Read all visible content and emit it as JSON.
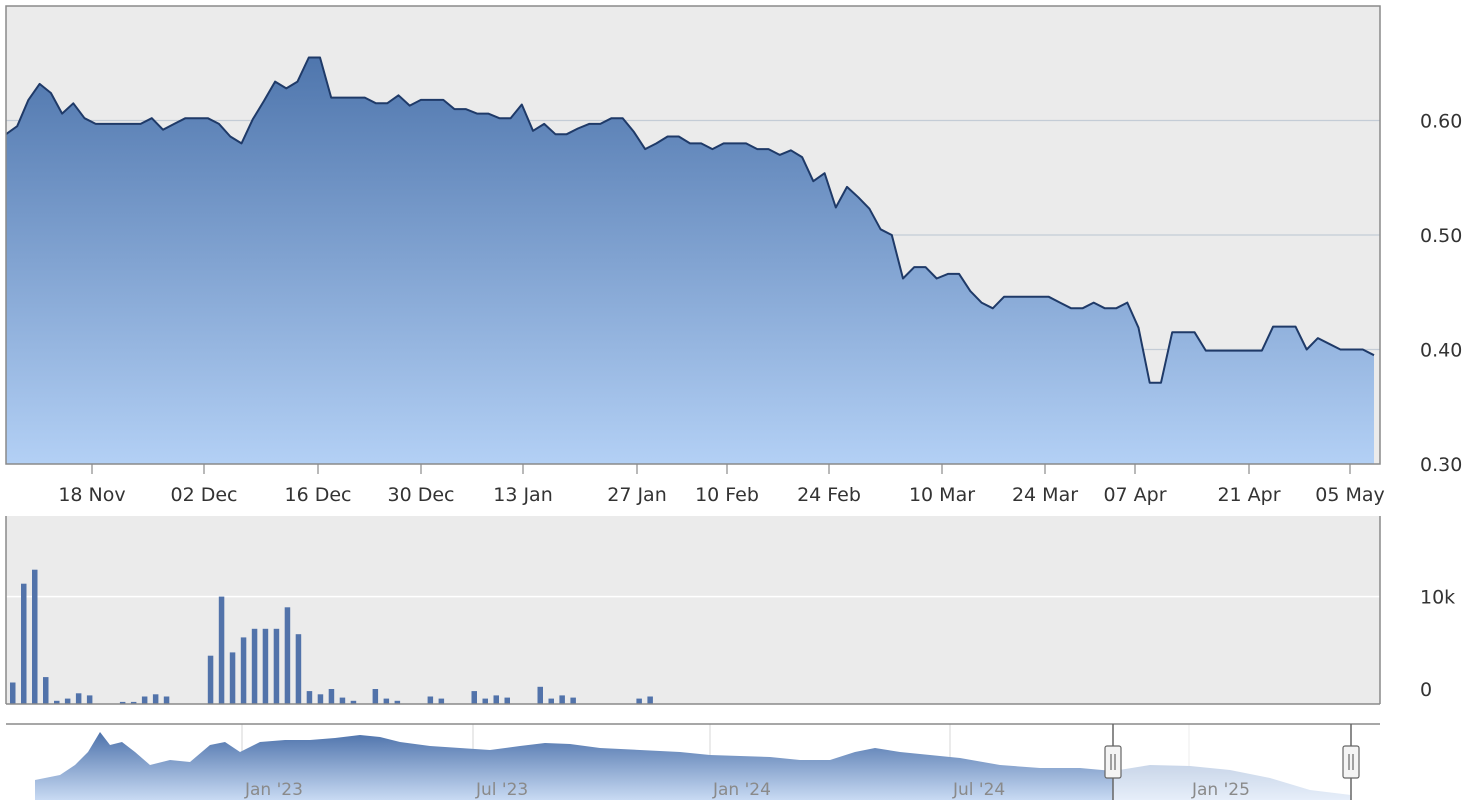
{
  "chart_data": [
    {
      "type": "area",
      "name": "price",
      "x_ticks": [
        "18 Nov",
        "02 Dec",
        "16 Dec",
        "30 Dec",
        "13 Jan",
        "27 Jan",
        "10 Feb",
        "24 Feb",
        "10 Mar",
        "24 Mar",
        "07 Apr",
        "21 Apr",
        "05 May"
      ],
      "y_ticks": [
        "0.60",
        "0.50",
        "0.40",
        "0.30"
      ],
      "ylim": [
        0.3,
        0.7
      ],
      "grid": true,
      "series": [
        {
          "values": [
            0.588,
            0.595,
            0.618,
            0.632,
            0.624,
            0.606,
            0.615,
            0.602,
            0.597,
            0.597,
            0.597,
            0.597,
            0.597,
            0.602,
            0.592,
            0.597,
            0.602,
            0.602,
            0.602,
            0.597,
            0.586,
            0.58,
            0.601,
            0.617,
            0.634,
            0.628,
            0.634,
            0.655,
            0.655,
            0.62,
            0.62,
            0.62,
            0.62,
            0.615,
            0.615,
            0.622,
            0.613,
            0.618,
            0.618,
            0.618,
            0.61,
            0.61,
            0.606,
            0.606,
            0.602,
            0.602,
            0.614,
            0.591,
            0.597,
            0.588,
            0.588,
            0.593,
            0.597,
            0.597,
            0.602,
            0.602,
            0.59,
            0.575,
            0.58,
            0.586,
            0.586,
            0.58,
            0.58,
            0.575,
            0.58,
            0.58,
            0.58,
            0.575,
            0.575,
            0.57,
            0.574,
            0.568,
            0.547,
            0.554,
            0.524,
            0.542,
            0.533,
            0.523,
            0.505,
            0.5,
            0.462,
            0.472,
            0.472,
            0.462,
            0.466,
            0.466,
            0.451,
            0.441,
            0.436,
            0.446,
            0.446,
            0.446,
            0.446,
            0.446,
            0.441,
            0.436,
            0.436,
            0.441,
            0.436,
            0.436,
            0.441,
            0.419,
            0.371,
            0.371,
            0.415,
            0.415,
            0.415,
            0.399,
            0.399,
            0.399,
            0.399,
            0.399,
            0.399,
            0.42,
            0.42,
            0.42,
            0.4,
            0.41,
            0.405,
            0.4,
            0.4,
            0.4,
            0.395
          ]
        }
      ]
    },
    {
      "type": "bar",
      "name": "volume",
      "y_ticks": [
        "10k",
        "0"
      ],
      "ylim": [
        0,
        17500
      ],
      "grid": true,
      "series": [
        {
          "values": [
            2000,
            11200,
            12500,
            2500,
            300,
            500,
            1000,
            800,
            0,
            0,
            200,
            200,
            700,
            900,
            700,
            0,
            0,
            0,
            4500,
            10000,
            4800,
            6200,
            7000,
            7000,
            7000,
            9000,
            6500,
            1200,
            900,
            1400,
            600,
            300,
            0,
            1400,
            500,
            300,
            0,
            0,
            700,
            500,
            0,
            0,
            1200,
            500,
            800,
            600,
            0,
            0,
            1600,
            500,
            800,
            600,
            0,
            0,
            0,
            0,
            0,
            500,
            700,
            0,
            0,
            0,
            0,
            0,
            0,
            0,
            0,
            0,
            0,
            0,
            0,
            0,
            0,
            0,
            0,
            0,
            0,
            0,
            0,
            0,
            0,
            0,
            0,
            0,
            0,
            0,
            0,
            0,
            0,
            0,
            0,
            0,
            0,
            0,
            0,
            0,
            0,
            0,
            0,
            0,
            0,
            0,
            0,
            0,
            0,
            0,
            0,
            0,
            0,
            0,
            0,
            0,
            0,
            0,
            0,
            0,
            0,
            0,
            0,
            0,
            0
          ]
        }
      ]
    },
    {
      "type": "area",
      "name": "navigator",
      "x_ticks": [
        "Jan '23",
        "Jul '23",
        "Jan '24",
        "Jul '24",
        "Jan '25"
      ]
    }
  ],
  "colors": {
    "plot_bg": "#ebebeb",
    "gridline": "#c4ccd6",
    "line": "#1f3a68",
    "area_top": "#4f76ad",
    "area_bottom": "#b0cdf2",
    "bar": "#5273aa",
    "navigator_fill": "#6f90c6",
    "border": "#888888"
  },
  "navigator": {
    "left_handle_icon": "grip-handle-icon",
    "right_handle_icon": "grip-handle-icon"
  }
}
